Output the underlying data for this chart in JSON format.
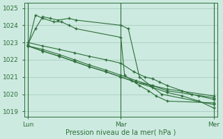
{
  "bg_color": "#cdeae0",
  "grid_color": "#a0c8b8",
  "line_color": "#2d6e3a",
  "marker_color": "#2d6e3a",
  "ylabel_values": [
    1019,
    1020,
    1021,
    1022,
    1023,
    1024,
    1025
  ],
  "xtick_labels": [
    "Lun",
    "Mar",
    "Mer"
  ],
  "xtick_positions": [
    0.0,
    0.5,
    1.0
  ],
  "xlabel": "Pression niveau de la mer( hPa )",
  "xlim": [
    -0.02,
    1.02
  ],
  "ylim": [
    1018.7,
    1025.3
  ],
  "series": [
    {
      "x": [
        0.0,
        0.04,
        0.08,
        0.14,
        0.18,
        0.22,
        0.26,
        0.5,
        0.52,
        0.56,
        0.6,
        0.65,
        0.69,
        0.75,
        1.0
      ],
      "y": [
        1022.8,
        1024.6,
        1024.4,
        1024.2,
        1024.2,
        1024.0,
        1023.8,
        1023.3,
        1021.1,
        1020.8,
        1020.5,
        1020.2,
        1019.9,
        1019.6,
        1019.5
      ]
    },
    {
      "x": [
        0.0,
        0.04,
        0.08,
        0.12,
        0.16,
        0.22,
        0.26,
        0.5,
        0.54,
        0.6,
        0.66,
        0.72,
        1.0
      ],
      "y": [
        1022.9,
        1023.8,
        1024.5,
        1024.4,
        1024.3,
        1024.4,
        1024.3,
        1024.0,
        1023.8,
        1021.0,
        1020.5,
        1020.0,
        1019.4
      ]
    },
    {
      "x": [
        0.0,
        0.08,
        0.17,
        0.25,
        0.33,
        0.42,
        0.5,
        0.58,
        0.67,
        0.75,
        0.83,
        0.92,
        1.0
      ],
      "y": [
        1022.8,
        1022.5,
        1022.2,
        1021.9,
        1021.6,
        1021.3,
        1021.0,
        1020.7,
        1020.4,
        1020.1,
        1019.9,
        1019.6,
        1019.2
      ]
    },
    {
      "x": [
        0.0,
        0.08,
        0.17,
        0.25,
        0.33,
        0.42,
        0.5,
        0.58,
        0.67,
        0.75,
        1.0
      ],
      "y": [
        1022.8,
        1022.6,
        1022.3,
        1022.0,
        1021.7,
        1021.4,
        1021.1,
        1020.8,
        1020.5,
        1020.2,
        1019.8
      ]
    },
    {
      "x": [
        0.0,
        0.08,
        0.17,
        0.25,
        0.33,
        0.42,
        0.5,
        0.58,
        0.67,
        0.75,
        1.0
      ],
      "y": [
        1022.8,
        1022.5,
        1022.2,
        1021.9,
        1021.6,
        1021.3,
        1021.0,
        1020.7,
        1020.5,
        1020.3,
        1019.9
      ]
    },
    {
      "x": [
        0.0,
        0.08,
        0.17,
        0.25,
        0.33,
        0.42,
        0.5,
        0.57,
        0.63,
        0.67,
        0.71,
        0.75,
        0.83,
        0.88,
        0.92,
        1.0
      ],
      "y": [
        1023.0,
        1022.8,
        1022.6,
        1022.4,
        1022.2,
        1022.0,
        1021.8,
        1021.3,
        1021.0,
        1020.9,
        1020.7,
        1020.5,
        1020.2,
        1020.0,
        1019.9,
        1019.7
      ]
    }
  ]
}
